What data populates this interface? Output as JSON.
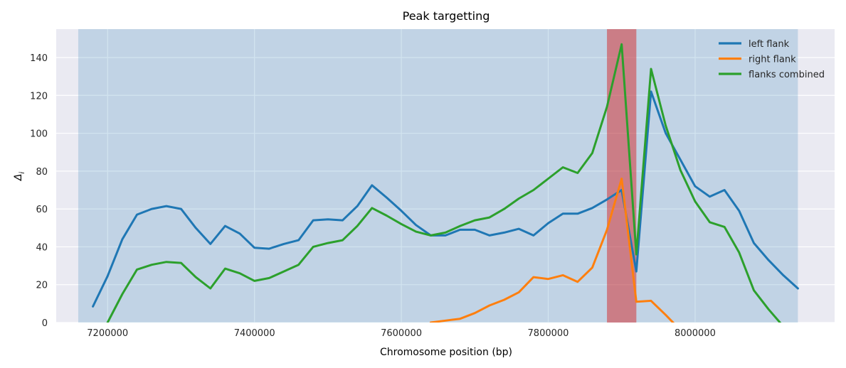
{
  "chart_data": {
    "type": "line",
    "title": "Peak targetting",
    "xlabel": "Chromosome position (bp)",
    "ylabel": "Δ",
    "ylabel_subscript": "i",
    "xlim": [
      7130000,
      8190000
    ],
    "ylim": [
      0,
      155
    ],
    "x_ticks": [
      7200000,
      7400000,
      7600000,
      7800000,
      8000000
    ],
    "y_ticks": [
      0,
      20,
      40,
      60,
      80,
      100,
      120,
      140
    ],
    "grid": true,
    "legend_position": "top-right",
    "shaded_regions": [
      {
        "x0": 7160000,
        "x1": 8140000,
        "color": "#1f77b4",
        "opacity": 0.2
      },
      {
        "x0": 7880000,
        "x1": 7920000,
        "color": "#d62728",
        "opacity": 0.5
      }
    ],
    "series": [
      {
        "name": "left flank",
        "color": "#1f77b4",
        "x": [
          7180000,
          7200000,
          7220000,
          7240000,
          7260000,
          7280000,
          7300000,
          7320000,
          7340000,
          7360000,
          7380000,
          7400000,
          7420000,
          7440000,
          7460000,
          7480000,
          7500000,
          7520000,
          7540000,
          7560000,
          7580000,
          7600000,
          7620000,
          7640000,
          7660000,
          7680000,
          7700000,
          7720000,
          7740000,
          7760000,
          7780000,
          7800000,
          7820000,
          7840000,
          7860000,
          7880000,
          7900000,
          7920000,
          7940000,
          7960000,
          7980000,
          8000000,
          8020000,
          8040000,
          8060000,
          8080000,
          8100000,
          8120000,
          8140000
        ],
        "y": [
          8.5,
          24.5,
          44,
          57,
          60,
          61.5,
          60,
          50,
          41.5,
          51,
          47,
          39.5,
          39,
          41.5,
          43.5,
          54,
          54.5,
          54,
          61.5,
          72.5,
          66,
          59,
          51.5,
          46,
          46,
          49,
          49,
          46,
          47.5,
          49.5,
          46,
          52.5,
          57.5,
          57.5,
          60.5,
          65,
          70,
          27,
          122,
          100,
          86,
          72,
          66.5,
          70,
          59,
          42,
          33,
          25,
          18
        ]
      },
      {
        "name": "right flank",
        "color": "#ff7f0e",
        "x": [
          7640000,
          7660000,
          7680000,
          7700000,
          7720000,
          7740000,
          7760000,
          7780000,
          7800000,
          7820000,
          7840000,
          7860000,
          7880000,
          7900000,
          7920000,
          7940000,
          7960000,
          7980000
        ],
        "y": [
          0,
          1,
          2,
          5,
          9,
          12,
          16,
          24,
          23,
          25,
          21.5,
          29,
          49,
          76,
          11,
          11.5,
          4,
          -4
        ]
      },
      {
        "name": "flanks combined",
        "color": "#2ca02c",
        "x": [
          7200000,
          7220000,
          7240000,
          7260000,
          7280000,
          7300000,
          7320000,
          7340000,
          7360000,
          7380000,
          7400000,
          7420000,
          7440000,
          7460000,
          7480000,
          7500000,
          7520000,
          7540000,
          7560000,
          7580000,
          7600000,
          7620000,
          7640000,
          7660000,
          7680000,
          7700000,
          7720000,
          7740000,
          7760000,
          7780000,
          7800000,
          7820000,
          7840000,
          7860000,
          7880000,
          7900000,
          7920000,
          7940000,
          7960000,
          7980000,
          8000000,
          8020000,
          8040000,
          8060000,
          8080000,
          8100000,
          8120000
        ],
        "y": [
          0,
          15,
          28,
          30.5,
          32,
          31.5,
          24,
          18,
          28.5,
          26,
          22,
          23.5,
          27,
          30.5,
          40,
          42,
          43.5,
          51,
          60.5,
          56.5,
          52,
          48,
          46,
          47.5,
          51,
          54,
          55.5,
          60,
          65.5,
          70,
          76,
          82,
          79,
          89.5,
          114,
          147,
          36,
          134,
          104,
          80.5,
          64,
          53,
          50.5,
          37,
          17,
          7,
          -2
        ]
      }
    ]
  }
}
